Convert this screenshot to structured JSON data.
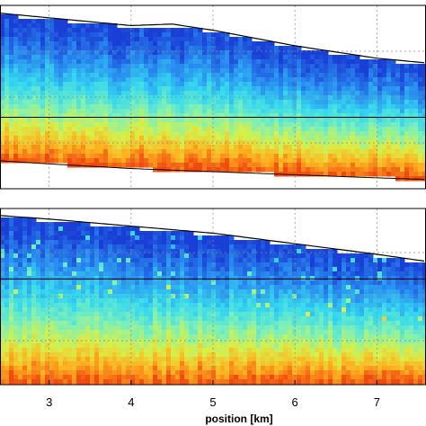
{
  "chart_data": {
    "type": "heatmap",
    "xlabel": "position [km]",
    "xlim": [
      2.4,
      7.6
    ],
    "xticks": [
      3,
      4,
      5,
      6,
      7
    ],
    "xtick_labels": [
      "3",
      "4",
      "5",
      "6",
      "7"
    ],
    "grid": true,
    "panels": [
      {
        "surface_line": {
          "x": [
            2.4,
            4.0,
            4.5,
            5.0,
            6.0,
            7.0,
            7.6
          ],
          "value": [
            0.05,
            0.13,
            0.12,
            0.16,
            0.26,
            0.34,
            0.37
          ]
        },
        "bottom_line": {
          "x": [
            2.4,
            3.0,
            4.0,
            5.0,
            6.0,
            7.0,
            7.6
          ],
          "value": [
            1.0,
            1.02,
            1.05,
            1.07,
            1.09,
            1.11,
            1.12
          ]
        },
        "horizontal_line": 0.72,
        "colormap": [
          "#1a3fd6",
          "#2a8ff0",
          "#35d8f0",
          "#7df0b8",
          "#d8f048",
          "#ffb020",
          "#f04a10"
        ],
        "value_range": [
          0,
          1
        ]
      },
      {
        "surface_line": {
          "x": [
            2.4,
            3.0,
            4.0,
            5.0,
            6.0,
            7.0,
            7.6
          ],
          "value": [
            0.04,
            0.06,
            0.1,
            0.14,
            0.2,
            0.26,
            0.3
          ]
        },
        "horizontal_line": 0.4,
        "colormap": [
          "#1a3fd6",
          "#2a8ff0",
          "#35d8f0",
          "#7df0b8",
          "#d8f048",
          "#ffb020",
          "#f04a10"
        ],
        "value_range": [
          0,
          1
        ]
      }
    ]
  }
}
